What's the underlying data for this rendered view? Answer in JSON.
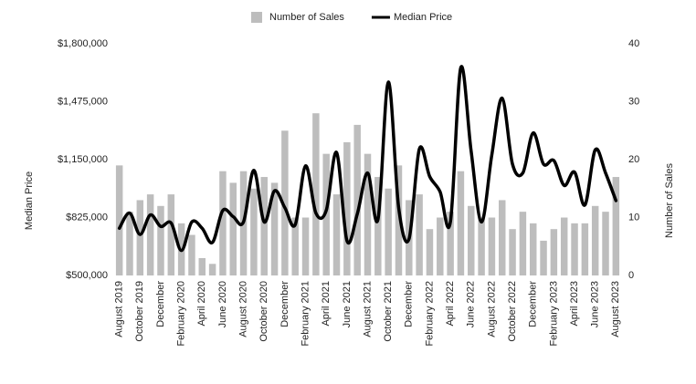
{
  "chart_data": {
    "type": "bar-line",
    "y_label": "Median Price",
    "y2_label": "Number of Sales",
    "categories": [
      "August 2019",
      null,
      "October 2019",
      null,
      "December",
      null,
      "February 2020",
      null,
      "April 2020",
      null,
      "June 2020",
      null,
      "August 2020",
      null,
      "October 2020",
      null,
      "December",
      null,
      "February 2021",
      null,
      "April 2021",
      null,
      "June 2021",
      null,
      "August 2021",
      null,
      "October 2021",
      null,
      "December",
      null,
      "February 2022",
      null,
      "April 2022",
      null,
      "June 2022",
      null,
      "August 2022",
      null,
      "October 2022",
      null,
      "December",
      null,
      "February 2023",
      null,
      "April 2023",
      null,
      "June 2023",
      null,
      "August 2023"
    ],
    "series": [
      {
        "name": "Number of Sales",
        "type": "bar",
        "axis": "y2",
        "color": "#bdbdbd",
        "values": [
          19,
          11,
          13,
          14,
          12,
          14,
          9,
          7,
          3,
          2,
          18,
          16,
          18,
          15,
          17,
          16,
          25,
          10,
          10,
          28,
          21,
          14,
          23,
          26,
          21,
          17,
          15,
          19,
          13,
          14,
          8,
          10,
          11,
          18,
          12,
          10,
          10,
          13,
          8,
          11,
          9,
          6,
          8,
          10,
          9,
          9,
          12,
          11,
          17
        ]
      },
      {
        "name": "Median Price",
        "type": "line",
        "color": "#000000",
        "values": [
          765000,
          850000,
          730000,
          840000,
          775000,
          795000,
          640000,
          800000,
          765000,
          685000,
          865000,
          830000,
          800000,
          1090000,
          800000,
          975000,
          880000,
          785000,
          1115000,
          850000,
          865000,
          1190000,
          695000,
          845000,
          1075000,
          815000,
          1585000,
          880000,
          705000,
          1210000,
          1055000,
          970000,
          800000,
          1665000,
          1200000,
          800000,
          1175000,
          1495000,
          1125000,
          1075000,
          1300000,
          1125000,
          1145000,
          1005000,
          1080000,
          895000,
          1205000,
          1075000,
          920000
        ]
      }
    ],
    "ylim": [
      500000,
      1800000
    ],
    "yticks": [
      {
        "value": 500000,
        "label": "$500,000"
      },
      {
        "value": 825000,
        "label": "$825,000"
      },
      {
        "value": 1150000,
        "label": "$1,150,000"
      },
      {
        "value": 1475000,
        "label": "$1,475,000"
      },
      {
        "value": 1800000,
        "label": "$1,800,000"
      }
    ],
    "y2lim": [
      0,
      40
    ],
    "y2ticks": [
      0,
      10,
      20,
      30,
      40
    ],
    "legend": "top"
  }
}
